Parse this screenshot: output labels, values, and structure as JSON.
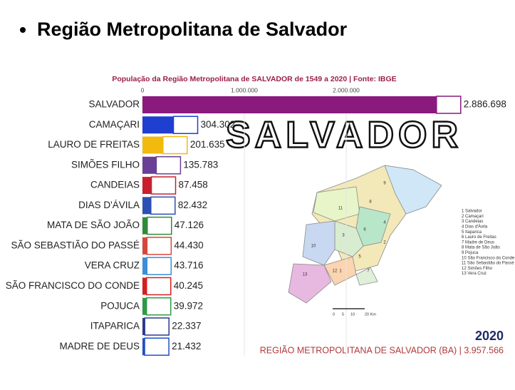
{
  "slide_title": "Região Metropolitana de Salvador",
  "chart_data": {
    "type": "hbar",
    "title": "População da Região Metropolitana de SALVADOR de 1549 a 2020 | Fonte: IBGE",
    "categories": [
      "SALVADOR",
      "CAMAÇARI",
      "LAURO DE FREITAS",
      "SIMÕES FILHO",
      "CANDEIAS",
      "DIAS D'ÁVILA",
      "MATA DE SÃO JOÃO",
      "SÃO SEBASTIÃO DO PASSÉ",
      "VERA CRUZ",
      "SÃO FRANCISCO DO CONDE",
      "POJUCA",
      "ITAPARICA",
      "MADRE DE DEUS"
    ],
    "values": [
      2886698,
      304302,
      201635,
      135783,
      87458,
      82432,
      47126,
      44430,
      43716,
      40245,
      39972,
      22337,
      21432
    ],
    "value_labels": [
      "2.886.698",
      "304.302",
      "201.635",
      "135.783",
      "87.458",
      "82.432",
      "47.126",
      "44.430",
      "43.716",
      "40.245",
      "39.972",
      "22.337",
      "21.432"
    ],
    "colors": [
      "#8a1a7e",
      "#1f3fd0",
      "#f2b90f",
      "#6a3f96",
      "#c8202c",
      "#2c4fb4",
      "#2e8b3a",
      "#d8463a",
      "#3a8fd8",
      "#d22020",
      "#2f9a46",
      "#2a3a8a",
      "#2050c8"
    ],
    "xlim": [
      0,
      3000000
    ],
    "xticks": [
      0,
      {
        "value": 1000000,
        "label": "1.000.000"
      },
      {
        "value": 2000000,
        "label": "2.000.000"
      }
    ],
    "grid": true
  },
  "map": {
    "title": "SALVADOR",
    "region_labels": [
      "9",
      "11",
      "4",
      "8",
      "6",
      "3",
      "2",
      "10",
      "5",
      "12",
      "1",
      "13",
      "7"
    ],
    "legend": [
      "1 Salvador",
      "2 Camaçari",
      "3 Candeias",
      "4 Dias d'Ávila",
      "5 Itaparica",
      "6 Lauro de Freitas",
      "7 Madre de Deus",
      "8 Mata de São João",
      "9 Pojuca",
      "10 São Francisco do Conde",
      "11 São Sebastião do Passé",
      "12 Simões Filho",
      "13 Vera Cruz"
    ],
    "scale": [
      "0",
      "5",
      "10",
      "20 Km"
    ]
  },
  "year": "2020",
  "footer": "REGIÃO METROPOLITANA DE SALVADOR (BA) | 3.957.566"
}
